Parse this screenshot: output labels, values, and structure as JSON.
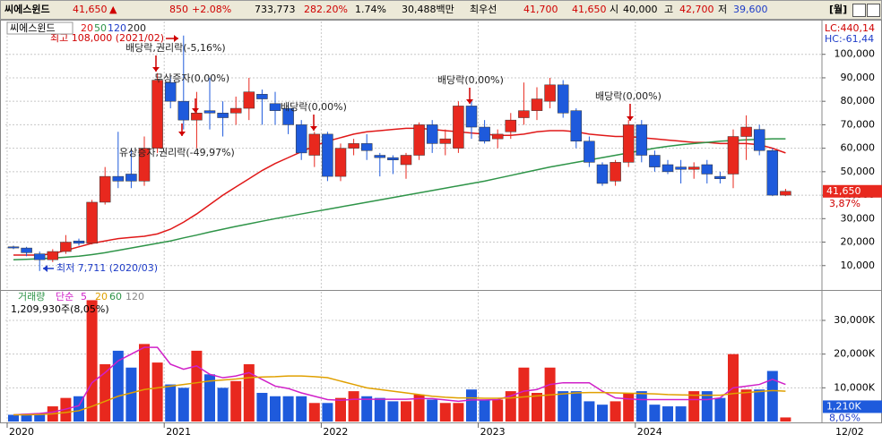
{
  "header": {
    "name": "씨에스윈드",
    "price": "41,650",
    "arrow": "▲",
    "change": "850",
    "pct": "+2.08%",
    "volume": "733,773",
    "turnover": "282.20%",
    "rate": "1.74%",
    "amount": "30,488백만",
    "best_label": "최우선",
    "best_ask": "41,700",
    "best_bid": "41,650",
    "open_label": "시",
    "open": "40,000",
    "high_label": "고",
    "high": "42,700",
    "low_label": "저",
    "low": "39,600",
    "period": "[월]"
  },
  "chart_data": [
    {
      "type": "candlestick",
      "title": "씨에스윈드",
      "open": [
        18000,
        17500,
        15000,
        12500,
        16000,
        20500,
        19500,
        37000,
        48000,
        49000,
        46000,
        60000,
        88000,
        80000,
        72000,
        76000,
        75000,
        75000,
        77000,
        83000,
        79000,
        77000,
        70000,
        57000,
        66000,
        48000,
        60000,
        62000,
        57000,
        56000,
        53000,
        57000,
        70000,
        62000,
        60000,
        78000,
        69000,
        64000,
        67000,
        73000,
        76000,
        80000,
        87000,
        76000,
        63000,
        53000,
        46000,
        54000,
        70000,
        57000,
        53000,
        52000,
        51000,
        53000,
        48000,
        49000,
        65000,
        68000,
        59000,
        40000
      ],
      "high": [
        18500,
        18000,
        16000,
        17000,
        23000,
        21500,
        38000,
        52000,
        67000,
        60000,
        65000,
        92000,
        91000,
        108000,
        84000,
        90000,
        80000,
        82000,
        90000,
        85000,
        84000,
        79000,
        72000,
        67000,
        67000,
        62000,
        64000,
        66000,
        58000,
        57000,
        58000,
        71000,
        72000,
        68000,
        80000,
        80000,
        72000,
        68000,
        75000,
        88000,
        86000,
        90000,
        89000,
        77000,
        65000,
        54000,
        55000,
        72000,
        72000,
        59000,
        55000,
        55000,
        54000,
        55000,
        50000,
        68000,
        74000,
        70000,
        60000,
        42700
      ],
      "low": [
        17000,
        14000,
        7711,
        11500,
        15000,
        18500,
        19000,
        36000,
        43000,
        43000,
        44000,
        58000,
        77000,
        68000,
        60000,
        68000,
        65000,
        70000,
        72000,
        70000,
        70000,
        66000,
        55000,
        52000,
        46000,
        46000,
        57000,
        55000,
        48000,
        49000,
        47000,
        55000,
        58000,
        57000,
        58000,
        64000,
        62000,
        60000,
        64000,
        70000,
        72000,
        77000,
        73000,
        60000,
        52000,
        44000,
        44000,
        52000,
        54000,
        50000,
        49000,
        45000,
        47000,
        45000,
        45000,
        43000,
        55000,
        57000,
        39600,
        39600
      ],
      "close": [
        17500,
        15500,
        12500,
        16000,
        20000,
        19500,
        37000,
        48000,
        46000,
        46000,
        60000,
        89000,
        80000,
        72000,
        75000,
        75000,
        73000,
        77000,
        84000,
        81000,
        76000,
        70000,
        58000,
        66000,
        48000,
        60000,
        62000,
        59000,
        56000,
        55000,
        57000,
        70000,
        62000,
        64000,
        78000,
        69000,
        63000,
        66000,
        72000,
        76000,
        81000,
        87000,
        75000,
        63000,
        54000,
        45000,
        54000,
        70000,
        57000,
        52000,
        50000,
        51000,
        52000,
        49000,
        47000,
        65000,
        69000,
        59000,
        40000,
        41650
      ],
      "up_color": "#e8281e",
      "down_color": "#1e5adc",
      "ma_series": [
        {
          "name": "20",
          "color": "#e01818",
          "values": [
            14500,
            14500,
            14500,
            15000,
            16500,
            18000,
            19500,
            20500,
            21500,
            22000,
            22500,
            23500,
            25500,
            28500,
            32000,
            36000,
            40000,
            43500,
            47000,
            50500,
            53500,
            56000,
            58500,
            61000,
            63000,
            64500,
            66000,
            67000,
            67500,
            68000,
            68500,
            68500,
            68000,
            67500,
            67000,
            66500,
            66000,
            65500,
            65500,
            66000,
            67000,
            67500,
            67500,
            67000,
            66000,
            65500,
            65000,
            65000,
            64500,
            64000,
            63500,
            63000,
            62500,
            62500,
            62000,
            62000,
            62000,
            61500,
            60000,
            58000
          ]
        },
        {
          "name": "50",
          "color": "#2e9448",
          "values": [
            12500,
            12700,
            12900,
            13200,
            13600,
            14000,
            14700,
            15500,
            16500,
            17500,
            18500,
            19500,
            20500,
            21800,
            23000,
            24300,
            25500,
            26700,
            27800,
            28900,
            30000,
            31000,
            32000,
            33000,
            34000,
            35000,
            36000,
            37000,
            38000,
            39000,
            40000,
            41000,
            42000,
            43000,
            44000,
            45000,
            46000,
            47200,
            48400,
            49600,
            50800,
            52000,
            53000,
            54000,
            55000,
            56000,
            57000,
            58000,
            59000,
            60000,
            60800,
            61500,
            62000,
            62500,
            63000,
            63300,
            63600,
            63800,
            64000,
            64000
          ]
        }
      ],
      "legend_extra": [
        {
          "name": "120",
          "color": "#1e3cc8"
        },
        {
          "name": "200",
          "color": "#222222"
        }
      ],
      "ylim": [
        0,
        114000
      ],
      "yticks": [
        {
          "value": 10000,
          "label": "10,000"
        },
        {
          "value": 20000,
          "label": "20,000"
        },
        {
          "value": 30000,
          "label": "30,000"
        },
        {
          "value": 40000,
          "label": "40,000"
        },
        {
          "value": 50000,
          "label": "50,000"
        },
        {
          "value": 60000,
          "label": "60,000"
        },
        {
          "value": 70000,
          "label": "70,000"
        },
        {
          "value": 80000,
          "label": "80,000"
        },
        {
          "value": 90000,
          "label": "90,000"
        },
        {
          "value": 100000,
          "label": "100,000"
        }
      ],
      "grid": true,
      "annotations": [
        "최고 108,000 (2021/02)",
        "배당락,권리락(-5,16%)",
        "무상증자(0,00%)",
        "유상증자,권리락(-49,97%)",
        "배당락(0,00%)",
        "배당락(0,00%)",
        "배당락(0,00%)",
        "최저 7,711 (2020/03)"
      ],
      "lc_label": "LC:440,14",
      "hc_label": "HC:-61,44",
      "last_price": {
        "value": 41650,
        "label": "41,650"
      },
      "last_change": "3,87%"
    },
    {
      "type": "bar",
      "title": "거래량",
      "ma_label": "단순",
      "values": [
        2000,
        2300,
        2500,
        4500,
        7000,
        7500,
        36000,
        17000,
        21000,
        16000,
        23000,
        17500,
        11000,
        10000,
        21000,
        14000,
        10000,
        12000,
        17000,
        8500,
        7500,
        7500,
        7500,
        5500,
        5500,
        7000,
        9000,
        7500,
        7000,
        6000,
        6000,
        8000,
        6500,
        5500,
        5500,
        9500,
        6500,
        6500,
        9000,
        16000,
        8500,
        16000,
        9000,
        9000,
        6000,
        5000,
        6000,
        8500,
        9000,
        5000,
        4500,
        4500,
        9000,
        9000,
        7000,
        20000,
        9500,
        9500,
        15000,
        1210
      ],
      "ma_series": [
        {
          "name": "5",
          "color": "#d020c8",
          "values": [
            2000,
            2200,
            2400,
            2800,
            3700,
            4700,
            11500,
            14500,
            18000,
            20000,
            22000,
            22000,
            17000,
            15500,
            16500,
            14000,
            13000,
            13500,
            14500,
            12500,
            10500,
            9800,
            8500,
            7500,
            6500,
            6300,
            6600,
            6600,
            6600,
            6600,
            6600,
            6800,
            6800,
            6400,
            6000,
            6400,
            6400,
            6500,
            7600,
            9000,
            9500,
            11000,
            11500,
            11500,
            11500,
            9000,
            7000,
            6700,
            6500,
            6500,
            6500,
            6500,
            6500,
            6500,
            7000,
            10000,
            10500,
            11000,
            12500,
            11000
          ]
        },
        {
          "name": "20",
          "color": "#e0a000",
          "values": [
            2000,
            2000,
            2100,
            2300,
            2700,
            3200,
            4500,
            6000,
            7500,
            8500,
            9500,
            10000,
            10500,
            11000,
            11500,
            12000,
            12300,
            12600,
            13000,
            13200,
            13300,
            13500,
            13500,
            13300,
            13000,
            12000,
            11000,
            10000,
            9500,
            9000,
            8500,
            8000,
            7500,
            7200,
            7000,
            7000,
            6900,
            6900,
            7000,
            7300,
            7600,
            7900,
            8200,
            8500,
            8600,
            8600,
            8500,
            8400,
            8300,
            8200,
            8000,
            7900,
            7800,
            7800,
            7800,
            8300,
            8600,
            8900,
            9200,
            9000
          ]
        }
      ],
      "legend_extra": [
        {
          "name": "60",
          "color": "#2e9448"
        },
        {
          "name": "120",
          "color": "#888888"
        }
      ],
      "ylim": [
        0,
        38500
      ],
      "yticks": [
        {
          "value": 10000,
          "label": "10,000K"
        },
        {
          "value": 20000,
          "label": "20,000K"
        },
        {
          "value": 30000,
          "label": "30,000K"
        }
      ],
      "grid": true,
      "summary": "1,209,930주(8,05%)",
      "last_volume": {
        "value": 1210,
        "label": "1,210K"
      },
      "last_ratio": "8,05%",
      "xticks": [
        {
          "value": 0,
          "label": "2020"
        },
        {
          "value": 12,
          "label": "2021"
        },
        {
          "value": 24,
          "label": "2022"
        },
        {
          "value": 36,
          "label": "2023"
        },
        {
          "value": 48,
          "label": "2024"
        }
      ],
      "end_label": "12/02"
    }
  ]
}
